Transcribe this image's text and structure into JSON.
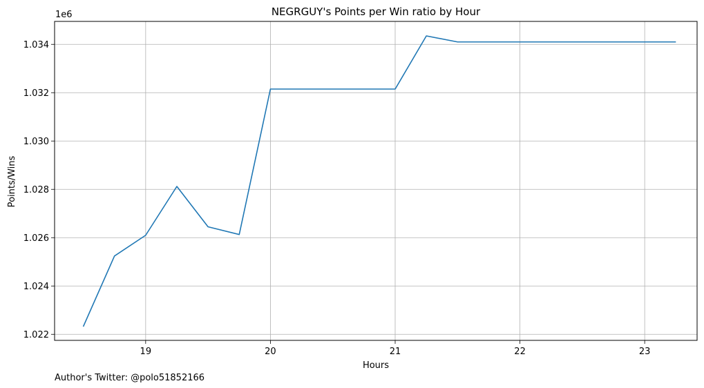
{
  "chart_data": {
    "type": "line",
    "title": "NEGRGUY's Points per Win ratio by Hour",
    "xlabel": "Hours",
    "ylabel": "Points/Wins",
    "y_offset_label": "1e6",
    "xlim": [
      18.27,
      23.42
    ],
    "ylim": [
      1.02175,
      1.03495
    ],
    "x_ticks": [
      19,
      20,
      21,
      22,
      23
    ],
    "x_tick_labels": [
      "19",
      "20",
      "21",
      "22",
      "23"
    ],
    "y_ticks": [
      1.022,
      1.024,
      1.026,
      1.028,
      1.03,
      1.032,
      1.034
    ],
    "y_tick_labels": [
      "1.022",
      "1.024",
      "1.026",
      "1.028",
      "1.030",
      "1.032",
      "1.034"
    ],
    "grid": true,
    "series": [
      {
        "color": "#1f77b4",
        "x": [
          18.5,
          18.75,
          19.0,
          19.25,
          19.5,
          19.75,
          20.0,
          20.25,
          20.5,
          20.75,
          21.0,
          21.25,
          21.5,
          21.75,
          22.0,
          22.25,
          22.5,
          22.75,
          23.0,
          23.25
        ],
        "y": [
          1.02232,
          1.02524,
          1.0261,
          1.02812,
          1.02645,
          1.02613,
          1.03215,
          1.03215,
          1.03215,
          1.03215,
          1.03215,
          1.03435,
          1.0341,
          1.0341,
          1.0341,
          1.0341,
          1.0341,
          1.0341,
          1.0341,
          1.0341
        ]
      }
    ]
  },
  "footer_text": "Author's Twitter: @polo51852166"
}
